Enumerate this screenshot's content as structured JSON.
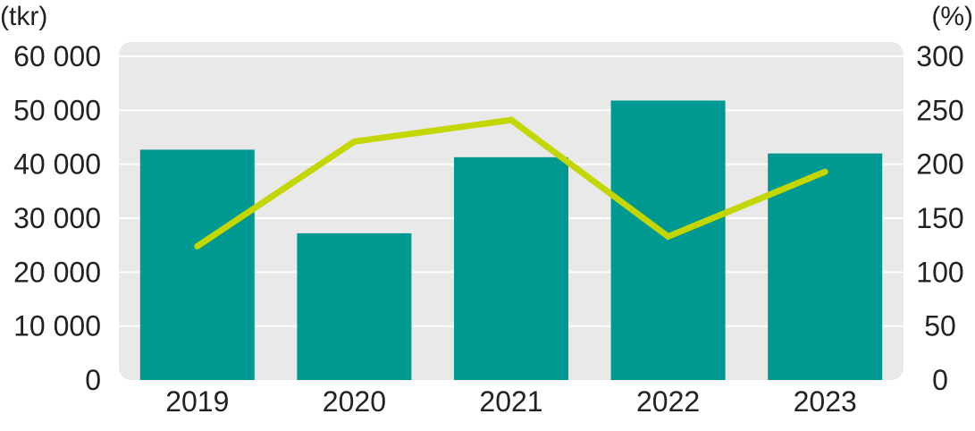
{
  "colors": {
    "bar": "#009991",
    "line": "#c4d600",
    "plot_background": "#e9e9e9",
    "grid": "#ffffff",
    "text": "#222222"
  },
  "chart_data": {
    "type": "bar",
    "categories": [
      "2019",
      "2020",
      "2021",
      "2022",
      "2023"
    ],
    "series": [
      {
        "type": "bar",
        "axis": "left",
        "values": [
          42700,
          27200,
          41300,
          51800,
          42000
        ]
      },
      {
        "type": "line",
        "axis": "right",
        "values": [
          124,
          221,
          241,
          133,
          193
        ]
      }
    ],
    "y_left": {
      "unit_label": "(tkr)",
      "ylim": [
        0,
        60000
      ],
      "ticks": [
        "0",
        "10 000",
        "20 000",
        "30 000",
        "40 000",
        "50 000",
        "60 000"
      ]
    },
    "y_right": {
      "unit_label": "(%)",
      "ylim": [
        0,
        300
      ],
      "ticks": [
        "0",
        "50",
        "100",
        "150",
        "200",
        "250",
        "300"
      ]
    },
    "grid": true,
    "legend": "none"
  }
}
